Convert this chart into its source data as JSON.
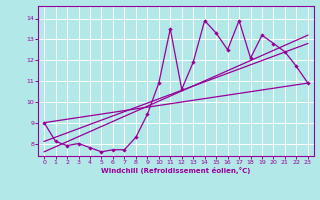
{
  "title": "",
  "xlabel": "Windchill (Refroidissement éolien,°C)",
  "ylabel": "",
  "background_color": "#b2e8e8",
  "line_color": "#990099",
  "grid_color": "#ffffff",
  "xlim": [
    -0.5,
    23.5
  ],
  "ylim": [
    7.4,
    14.6
  ],
  "yticks": [
    8,
    9,
    10,
    11,
    12,
    13,
    14
  ],
  "xticks": [
    0,
    1,
    2,
    3,
    4,
    5,
    6,
    7,
    8,
    9,
    10,
    11,
    12,
    13,
    14,
    15,
    16,
    17,
    18,
    19,
    20,
    21,
    22,
    23
  ],
  "main_series_x": [
    0,
    1,
    2,
    3,
    4,
    5,
    6,
    7,
    8,
    9,
    10,
    11,
    12,
    13,
    14,
    15,
    16,
    17,
    18,
    19,
    20,
    21,
    22,
    23
  ],
  "main_series_y": [
    9.0,
    8.1,
    7.9,
    8.0,
    7.8,
    7.6,
    7.7,
    7.7,
    8.3,
    9.4,
    10.9,
    13.5,
    10.6,
    11.9,
    13.9,
    13.3,
    12.5,
    13.9,
    12.1,
    13.2,
    12.8,
    12.4,
    11.7,
    10.9
  ],
  "trend1_x": [
    0,
    23
  ],
  "trend1_y": [
    9.0,
    10.9
  ],
  "trend2_x": [
    0,
    23
  ],
  "trend2_y": [
    8.1,
    12.8
  ],
  "trend3_x": [
    0,
    23
  ],
  "trend3_y": [
    7.6,
    13.2
  ]
}
